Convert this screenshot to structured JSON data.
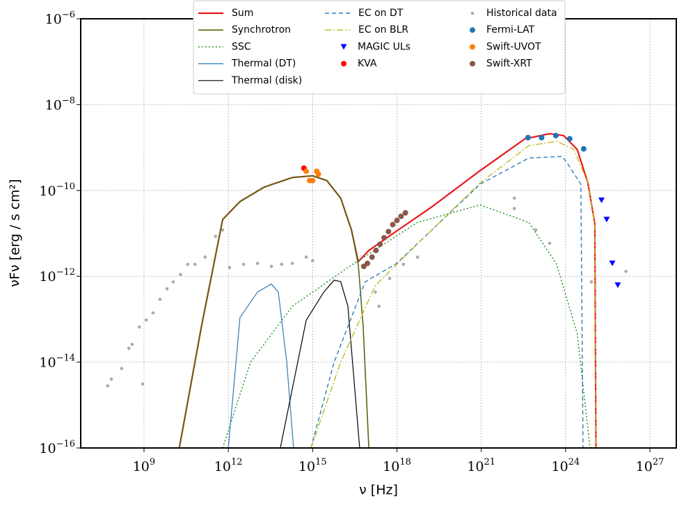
{
  "chart_data": {
    "type": "line",
    "log_x": true,
    "log_y": true,
    "grid": true,
    "legend": "upper center",
    "x_label": "ν [Hz]",
    "y_label": "νFν [erg / s cm²]",
    "xlim": [
      5600000.0,
      8.7e+27
    ],
    "ylim": [
      1e-16,
      1e-06
    ],
    "xticks": [
      {
        "value": 1000000000.0,
        "label": "10^9"
      },
      {
        "value": 1000000000000.0,
        "label": "10^12"
      },
      {
        "value": 1000000000000000.0,
        "label": "10^15"
      },
      {
        "value": 1e+18,
        "label": "10^18"
      },
      {
        "value": 1e+21,
        "label": "10^21"
      },
      {
        "value": 1e+24,
        "label": "10^24"
      },
      {
        "value": 1e+27,
        "label": "10^27"
      }
    ],
    "yticks": [
      {
        "value": 1e-16,
        "label": "10^−16"
      },
      {
        "value": 1e-14,
        "label": "10^−14"
      },
      {
        "value": 1e-12,
        "label": "10^−12"
      },
      {
        "value": 1e-10,
        "label": "10^−10"
      },
      {
        "value": 1e-08,
        "label": "10^−8"
      },
      {
        "value": 1e-06,
        "label": "10^−6"
      }
    ],
    "series": [
      {
        "name": "Sum",
        "color": "#e8151b",
        "style": "solid",
        "width": 2.2,
        "x": [
          18000000000.0,
          110000000000.0,
          630000000000.0,
          2600000000000.0,
          19000000000000.0,
          190000000000000.0,
          1000000000000000.0,
          3200000000000000.0,
          1e+16,
          2.4e+16,
          4.2e+16,
          1e+17,
          1.1e+18,
          1.7e+19,
          9.1e+20,
          3.6e+22,
          2.7e+23,
          8.5e+23,
          2.6e+24,
          6.2e+24,
          1.1e+25,
          1.2e+25
        ],
        "values": [
          1e-16,
          6.6e-14,
          2.1e-11,
          5.5e-11,
          1.2e-10,
          2e-10,
          2.2e-10,
          1.7e-10,
          6.6e-11,
          1.2e-11,
          2.2e-12,
          4e-12,
          1.2e-11,
          4.1e-11,
          2.9e-10,
          1.6e-09,
          2.1e-09,
          1.9e-09,
          9e-10,
          1.5e-10,
          1.7e-11,
          1e-16
        ]
      },
      {
        "name": "Synchrotron",
        "color": "#4f6b0f",
        "style": "solid",
        "width": 1.6,
        "x": [
          18000000000.0,
          110000000000.0,
          630000000000.0,
          2600000000000.0,
          19000000000000.0,
          190000000000000.0,
          1000000000000000.0,
          3200000000000000.0,
          1e+16,
          2.4e+16,
          4.2e+16,
          6.3e+16,
          1e+17
        ],
        "values": [
          1e-16,
          6.6e-14,
          2.1e-11,
          5.5e-11,
          1.2e-10,
          2e-10,
          2.2e-10,
          1.7e-10,
          6.6e-11,
          1.2e-11,
          1.9e-12,
          6.6e-14,
          1e-16
        ]
      },
      {
        "name": "SSC",
        "color": "#138a13",
        "style": "dotted",
        "width": 1.4,
        "x": [
          630000000000.0,
          6200000000000.0,
          190000000000000.0,
          1.8e+16,
          5.4e+18,
          9.1e+20,
          4.9e+22,
          4.8e+23,
          2.6e+24,
          7.4e+24
        ],
        "values": [
          1e-16,
          1e-14,
          2e-13,
          1.6e-12,
          1.8e-11,
          4.6e-11,
          1.8e-11,
          1.9e-12,
          4.6e-14,
          1e-16
        ]
      },
      {
        "name": "Thermal (DT)",
        "color": "#2b7bb9",
        "style": "solid",
        "width": 1.2,
        "x": [
          1000000000000.0,
          2600000000000.0,
          11000000000000.0,
          34000000000000.0,
          60000000000000.0,
          120000000000000.0,
          210000000000000.0
        ],
        "values": [
          1e-16,
          1.1e-13,
          4.3e-13,
          6.6e-13,
          4.3e-13,
          1e-14,
          1e-16
        ]
      },
      {
        "name": "Thermal (disk)",
        "color": "#000000",
        "style": "solid",
        "width": 1.2,
        "x": [
          71000000000000.0,
          590000000000000.0,
          2500000000000000.0,
          5800000000000000.0,
          1e+16,
          1.8e+16,
          4.7e+16
        ],
        "values": [
          1e-16,
          9.5e-14,
          4.3e-13,
          8.1e-13,
          7.5e-13,
          2e-13,
          1e-16
        ]
      },
      {
        "name": "EC on DT",
        "color": "#2b7bb9",
        "style": "dashed",
        "width": 1.4,
        "x": [
          870000000000000.0,
          5800000000000000.0,
          7.4e+16,
          9.8e+17,
          9.1e+20,
          4.9e+22,
          7.6e+23,
          1.3e+24,
          3.5e+24,
          4.2e+24
        ],
        "values": [
          1e-16,
          1e-14,
          7.4e-13,
          2e-12,
          1.4e-10,
          5.7e-10,
          6.2e-10,
          3.8e-10,
          1.4e-10,
          1e-16
        ]
      },
      {
        "name": "EC on BLR",
        "color": "#bcbd22",
        "style": "dashdot",
        "width": 1.4,
        "x": [
          870000000000000.0,
          1e+16,
          1.7e+17,
          5.4e+18,
          9.1e+20,
          4.9e+22,
          4.8e+23,
          2e+24,
          6.2e+24,
          1.1e+25,
          1.2e+25
        ],
        "values": [
          1e-16,
          1e-14,
          6.1e-13,
          5.7e-12,
          1.5e-10,
          1.1e-09,
          1.4e-09,
          9e-10,
          1.5e-10,
          1.7e-11,
          1e-16
        ]
      },
      {
        "name": "MAGIC ULs",
        "color": "#0000ff",
        "marker": "triangle-down",
        "x": [
          1.9e+25,
          2.9e+25,
          4.6e+25,
          7.2e+25
        ],
        "values": [
          5.9e-11,
          2.1e-11,
          2e-12,
          6.2e-13
        ]
      },
      {
        "name": "KVA",
        "color": "#ff0000",
        "marker": "circle",
        "x": [
          490000000000000.0
        ],
        "values": [
          3.3e-10
        ]
      },
      {
        "name": "Historical data",
        "color": "#a9a9a9",
        "marker": "dot",
        "x": [
          51000000.0,
          69000000.0,
          160000000.0,
          290000000.0,
          380000000.0,
          680000000.0,
          1200000000.0,
          2100000000.0,
          3700000000.0,
          6600000000.0,
          11000000000.0,
          20000000000.0,
          36000000000.0,
          65000000000.0,
          150000000000.0,
          350000000000.0,
          630000000000.0,
          1100000000000.0,
          3500000000000.0,
          11000000000000.0,
          34000000000000.0,
          79000000000000.0,
          190000000000000.0,
          590000000000000.0,
          1000000000000000.0,
          890000000.0,
          1.7e+17,
          5.5e+17,
          5.4e+18,
          1.5e+22,
          1.5e+22,
          8.7e+22,
          2.7e+23,
          8.3e+24,
          1.4e+26,
          1.7e+18,
          2.3e+17
        ],
        "values": [
          2.8e-15,
          4e-15,
          7.1e-15,
          2.1e-14,
          2.6e-14,
          6.6e-14,
          9.6e-14,
          1.4e-13,
          2.9e-13,
          5.1e-13,
          7.4e-13,
          1.1e-12,
          1.9e-12,
          1.9e-12,
          2.8e-12,
          8.5e-12,
          1.2e-11,
          1.6e-12,
          1.9e-12,
          2e-12,
          1.7e-12,
          1.9e-12,
          2e-12,
          2.8e-12,
          2.3e-12,
          3.1e-15,
          4.3e-13,
          8.9e-13,
          2.8e-12,
          6.6e-11,
          3.8e-11,
          1.2e-11,
          5.9e-12,
          7.4e-13,
          1.3e-12,
          1.9e-12,
          2e-13
        ]
      },
      {
        "name": "Fermi-LAT",
        "color": "#1f77b4",
        "marker": "circle",
        "x": [
          4.6e+22,
          1.4e+23,
          4.5e+23,
          1.4e+24,
          4.4e+24
        ],
        "values": [
          1.7e-09,
          1.7e-09,
          1.9e-09,
          1.6e-09,
          9.3e-10
        ]
      },
      {
        "name": "Swift-UVOT",
        "color": "#ff7f0e",
        "marker": "circle",
        "x": [
          590000000000000.0,
          780000000000000.0,
          1000000000000000.0,
          1400000000000000.0,
          1600000000000000.0
        ],
        "values": [
          2.8e-10,
          1.7e-10,
          1.7e-10,
          2.8e-10,
          2.4e-10
        ]
      },
      {
        "name": "Swift-XRT",
        "color": "#8c564b",
        "marker": "circle",
        "x": [
          6.6e+16,
          8.9e+16,
          1.3e+17,
          1.8e+17,
          2.5e+17,
          3.5e+17,
          5e+17,
          7.1e+17,
          1e+18,
          1.4e+18,
          2e+18
        ],
        "values": [
          1.7e-12,
          2e-12,
          2.8e-12,
          4e-12,
          5.6e-12,
          7.9e-12,
          1.1e-11,
          1.6e-11,
          2e-11,
          2.5e-11,
          3e-11
        ]
      }
    ]
  }
}
